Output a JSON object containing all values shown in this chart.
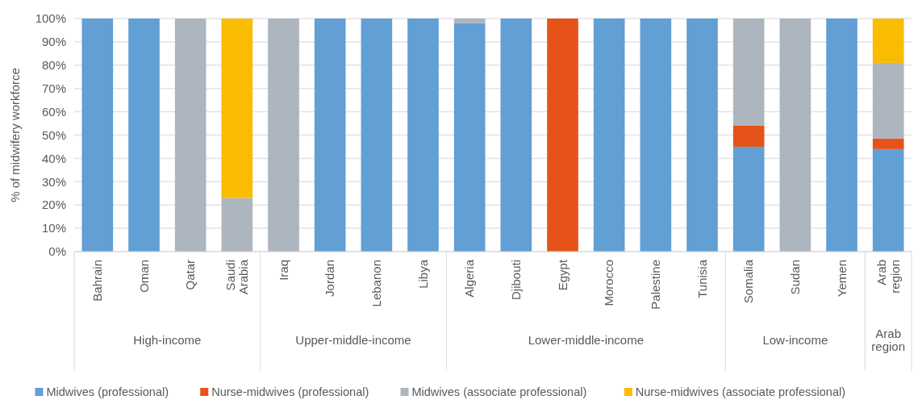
{
  "chart_data": {
    "type": "bar",
    "stacked": true,
    "ylabel": "% of midwifery workforce",
    "categories": [
      "Bahrain",
      "Oman",
      "Qatar",
      "Saudi Arabia",
      "Iraq",
      "Jordan",
      "Lebanon",
      "Libya",
      "Algeria",
      "Djibouti",
      "Egypt",
      "Morocco",
      "Palestine",
      "Tunisia",
      "Somalia",
      "Sudan",
      "Yemen",
      "Arab region"
    ],
    "series": [
      {
        "name": "Midwives (professional)",
        "color": "#619fd5",
        "values": [
          100,
          100,
          0,
          0,
          0,
          100,
          100,
          100,
          98,
          100,
          0,
          100,
          100,
          100,
          45,
          0,
          100,
          44
        ]
      },
      {
        "name": "Nurse-midwives (professional)",
        "color": "#e55318",
        "values": [
          0,
          0,
          0,
          0,
          0,
          0,
          0,
          0,
          0,
          0,
          100,
          0,
          0,
          0,
          9,
          0,
          0,
          4.5
        ]
      },
      {
        "name": "Midwives (associate professional)",
        "color": "#adb5bf",
        "values": [
          0,
          0,
          100,
          23,
          100,
          0,
          0,
          0,
          2,
          0,
          0,
          0,
          0,
          0,
          46,
          100,
          0,
          32.5
        ]
      },
      {
        "name": "Nurse-midwives (associate professional)",
        "color": "#f9bc00",
        "values": [
          0,
          0,
          0,
          77,
          0,
          0,
          0,
          0,
          0,
          0,
          0,
          0,
          0,
          0,
          0,
          0,
          0,
          19
        ]
      }
    ],
    "annotations": [
      "High-income",
      "Upper-middle-income",
      "Lower-middle-income",
      "Low-income",
      "Arab region"
    ],
    "ylim": [
      0,
      100
    ],
    "yticks": [
      {
        "value": 0,
        "label": "0%"
      },
      {
        "value": 10,
        "label": "10%"
      },
      {
        "value": 20,
        "label": "20%"
      },
      {
        "value": 30,
        "label": "30%"
      },
      {
        "value": 40,
        "label": "40%"
      },
      {
        "value": 50,
        "label": "50%"
      },
      {
        "value": 60,
        "label": "60%"
      },
      {
        "value": 70,
        "label": "70%"
      },
      {
        "value": 80,
        "label": "80%"
      },
      {
        "value": 90,
        "label": "90%"
      },
      {
        "value": 100,
        "label": "100%"
      }
    ],
    "grid": "y",
    "legend": "bottom"
  }
}
